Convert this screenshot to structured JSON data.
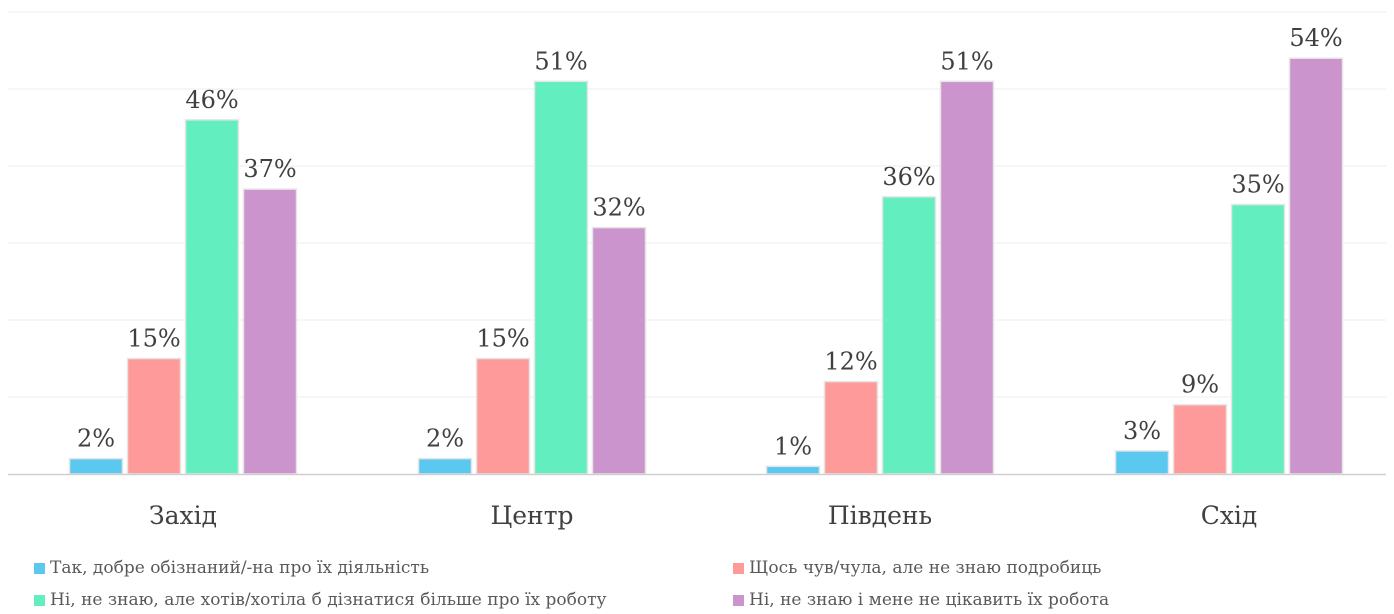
{
  "chart_data": {
    "type": "bar",
    "categories": [
      "Захід",
      "Центр",
      "Південь",
      "Схід"
    ],
    "series": [
      {
        "name": "Так, добре обізнаний/-на про їх діяльність",
        "values": [
          2,
          2,
          1,
          3
        ],
        "labels": [
          "2%",
          "2%",
          "1%",
          "3%"
        ]
      },
      {
        "name": "Щось чув/чула, але не знаю подробиць",
        "values": [
          15,
          15,
          12,
          9
        ],
        "labels": [
          "15%",
          "15%",
          "12%",
          "9%"
        ]
      },
      {
        "name": "Ні, не знаю, але хотів/хотіла б дізнатися більше про їх роботу",
        "values": [
          46,
          51,
          36,
          35
        ],
        "labels": [
          "46%",
          "51%",
          "36%",
          "35%"
        ]
      },
      {
        "name": "Ні, не знаю і мене не цікавить їх робота",
        "values": [
          37,
          32,
          51,
          54
        ],
        "labels": [
          "37%",
          "32%",
          "51%",
          "54%"
        ]
      }
    ],
    "ylim": [
      0,
      60
    ],
    "grid": true,
    "legend_position": "bottom",
    "colors": [
      "#5bc8ef",
      "#ff9a9a",
      "#62eebf",
      "#cc94cc"
    ]
  }
}
